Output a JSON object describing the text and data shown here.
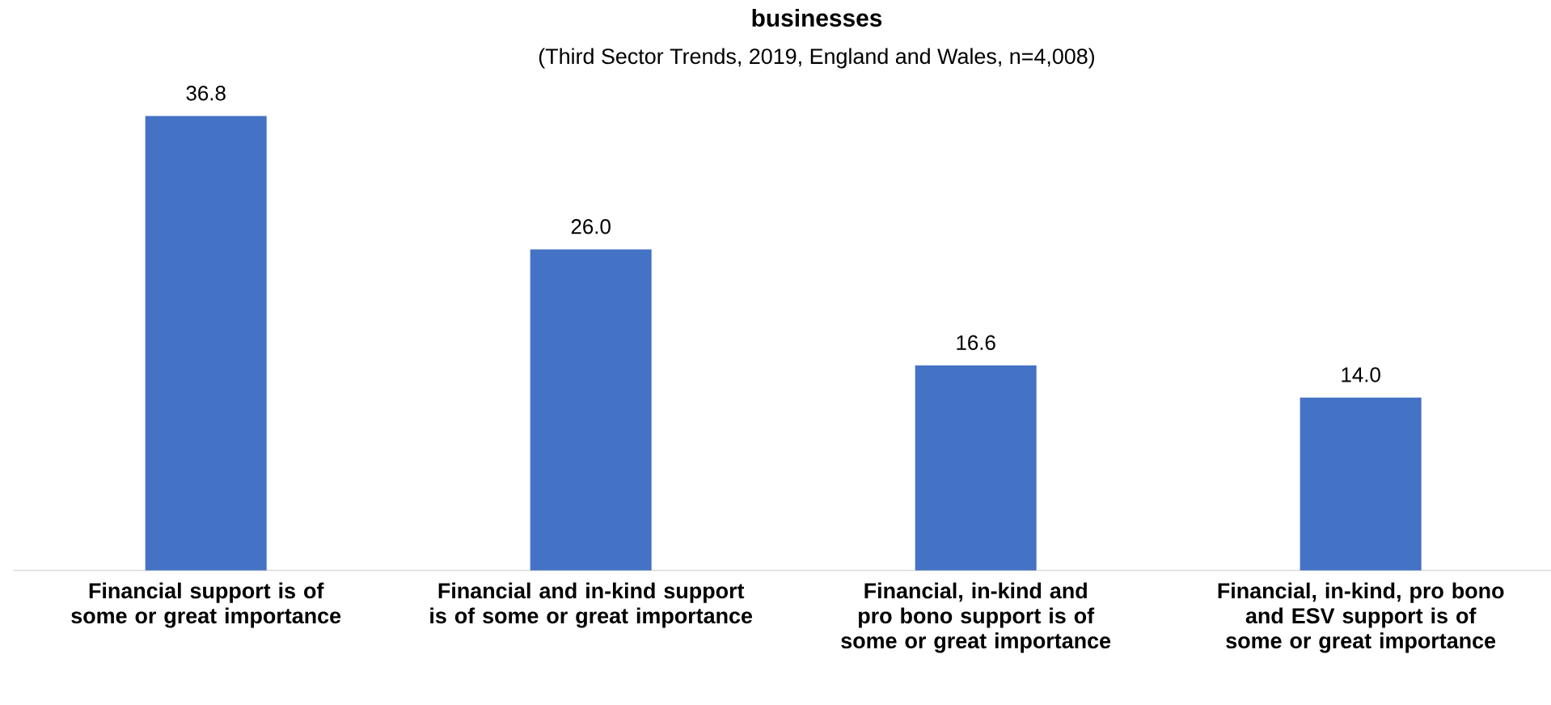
{
  "chart_data": {
    "type": "bar",
    "title": "businesses",
    "subtitle": "(Third Sector Trends, 2019, England and Wales, n=4,008)",
    "categories": [
      "Financial support is of some or great importance",
      "Financial and in-kind support is of some or great importance",
      "Financial, in-kind and pro bono support is of some or great importance",
      "Financial, in-kind, pro bono and ESV support is of some or great importance"
    ],
    "values": [
      36.8,
      26.0,
      16.6,
      14.0
    ],
    "value_labels": [
      "36.8",
      "26.0",
      "16.6",
      "14.0"
    ],
    "color": "#4472c4"
  }
}
